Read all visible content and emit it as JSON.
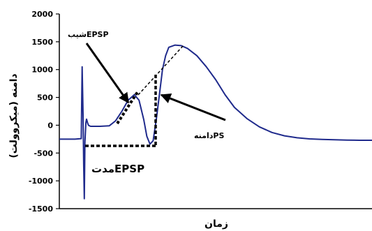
{
  "chart_data": {
    "type": "line",
    "xlabel": "زمان",
    "ylabel": "دامنه (میکروولت)",
    "ylim": [
      -1500,
      2000
    ],
    "yticks": [
      -1500,
      -1000,
      -500,
      0,
      500,
      1000,
      1500,
      2000
    ],
    "grid": false,
    "series": [
      {
        "color": "#1f2a8c",
        "x": [
          0,
          0.05,
          0.07,
          0.073,
          0.076,
          0.078,
          0.08,
          0.082,
          0.085,
          0.087,
          0.09,
          0.093,
          0.096,
          0.1,
          0.11,
          0.13,
          0.16,
          0.18,
          0.2,
          0.22,
          0.24,
          0.255,
          0.27,
          0.28,
          0.29,
          0.3,
          0.31,
          0.32,
          0.33,
          0.34,
          0.35,
          0.37,
          0.39,
          0.41,
          0.44,
          0.47,
          0.5,
          0.53,
          0.56,
          0.6,
          0.64,
          0.68,
          0.72,
          0.76,
          0.8,
          0.84,
          0.88,
          0.92,
          0.96,
          1.0
        ],
        "y": [
          -250,
          -250,
          -240,
          1050,
          200,
          -700,
          -1320,
          -300,
          50,
          110,
          50,
          0,
          -10,
          -20,
          -20,
          -20,
          -10,
          80,
          250,
          450,
          550,
          450,
          100,
          -200,
          -340,
          -280,
          100,
          550,
          1000,
          1250,
          1400,
          1440,
          1430,
          1380,
          1250,
          1050,
          820,
          550,
          320,
          120,
          -30,
          -130,
          -190,
          -225,
          -245,
          -255,
          -262,
          -268,
          -270,
          -270
        ]
      }
    ],
    "annotations": [
      {
        "text": "شیبEPSP",
        "kind": "arrow",
        "target": "rising slope of EPSP"
      },
      {
        "text": "دامنهPS",
        "kind": "arrow",
        "target": "population spike depth"
      },
      {
        "text": "مدتEPSP",
        "kind": "dashed-bar",
        "target": "EPSP duration"
      }
    ]
  }
}
